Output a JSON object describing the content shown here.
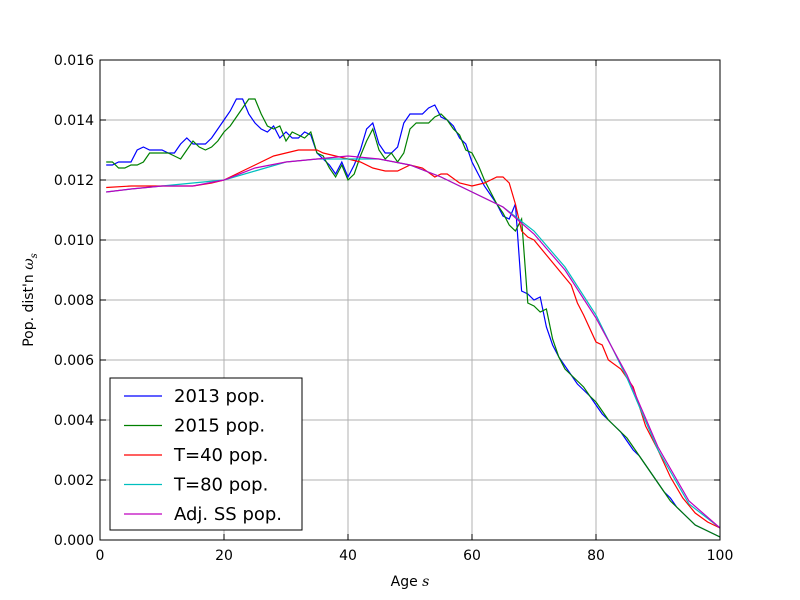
{
  "chart_data": {
    "type": "line",
    "title": "",
    "xlabel": "Age",
    "xlabel_symbol": "s",
    "ylabel": "Pop. dist'n",
    "ylabel_symbol": "ω",
    "ylabel_subscript": "s",
    "xlim": [
      0,
      100
    ],
    "ylim": [
      0,
      0.016
    ],
    "xticks": [
      0,
      20,
      40,
      60,
      80,
      100
    ],
    "yticks": [
      0.0,
      0.002,
      0.004,
      0.006,
      0.008,
      0.01,
      0.012,
      0.014,
      0.016
    ],
    "ytick_labels": [
      "0.000",
      "0.002",
      "0.004",
      "0.006",
      "0.008",
      "0.010",
      "0.012",
      "0.014",
      "0.016"
    ],
    "grid": true,
    "legend_position": "lower-left",
    "series": [
      {
        "name": "2013 pop.",
        "color": "#0000ff",
        "x": [
          1,
          2,
          3,
          4,
          5,
          6,
          7,
          8,
          9,
          10,
          11,
          12,
          13,
          14,
          15,
          16,
          17,
          18,
          19,
          20,
          21,
          22,
          23,
          24,
          25,
          26,
          27,
          28,
          29,
          30,
          31,
          32,
          33,
          34,
          35,
          36,
          37,
          38,
          39,
          40,
          41,
          42,
          43,
          44,
          45,
          46,
          47,
          48,
          49,
          50,
          51,
          52,
          53,
          54,
          55,
          56,
          57,
          58,
          59,
          60,
          61,
          62,
          63,
          64,
          65,
          66,
          67,
          68,
          69,
          70,
          71,
          72,
          73,
          74,
          75,
          76,
          77,
          78,
          79,
          80,
          81,
          82,
          83,
          84,
          85,
          86,
          87,
          88,
          89,
          90,
          91,
          92,
          93,
          94,
          95,
          96,
          97,
          98,
          99,
          100
        ],
        "y": [
          0.0125,
          0.0125,
          0.0126,
          0.0126,
          0.0126,
          0.013,
          0.0131,
          0.013,
          0.013,
          0.013,
          0.0129,
          0.0129,
          0.0132,
          0.0134,
          0.0132,
          0.0132,
          0.0132,
          0.0134,
          0.0137,
          0.014,
          0.0143,
          0.0147,
          0.0147,
          0.0142,
          0.0139,
          0.0137,
          0.0136,
          0.0138,
          0.0134,
          0.0136,
          0.0134,
          0.0134,
          0.0136,
          0.0135,
          0.0129,
          0.0127,
          0.0125,
          0.0122,
          0.0126,
          0.0121,
          0.0125,
          0.013,
          0.0137,
          0.0139,
          0.0132,
          0.0129,
          0.0129,
          0.0131,
          0.0139,
          0.0142,
          0.0142,
          0.0142,
          0.0144,
          0.0145,
          0.0141,
          0.014,
          0.0138,
          0.0134,
          0.0132,
          0.0126,
          0.0122,
          0.0118,
          0.0115,
          0.0112,
          0.0108,
          0.0107,
          0.0112,
          0.0083,
          0.0082,
          0.008,
          0.0081,
          0.0071,
          0.0065,
          0.0061,
          0.0058,
          0.0055,
          0.0052,
          0.005,
          0.0048,
          0.0045,
          0.0042,
          0.004,
          0.0038,
          0.0036,
          0.0033,
          0.003,
          0.0028,
          0.0025,
          0.0022,
          0.0019,
          0.0016,
          0.0014,
          0.0011,
          0.0009,
          0.0007,
          0.0005,
          0.0004,
          0.0003,
          0.0002,
          0.0001
        ]
      },
      {
        "name": "2015 pop.",
        "color": "#008000",
        "x": [
          1,
          2,
          3,
          4,
          5,
          6,
          7,
          8,
          9,
          10,
          11,
          12,
          13,
          14,
          15,
          16,
          17,
          18,
          19,
          20,
          21,
          22,
          23,
          24,
          25,
          26,
          27,
          28,
          29,
          30,
          31,
          32,
          33,
          34,
          35,
          36,
          37,
          38,
          39,
          40,
          41,
          42,
          43,
          44,
          45,
          46,
          47,
          48,
          49,
          50,
          51,
          52,
          53,
          54,
          55,
          56,
          57,
          58,
          59,
          60,
          61,
          62,
          63,
          64,
          65,
          66,
          67,
          68,
          69,
          70,
          71,
          72,
          73,
          74,
          75,
          76,
          77,
          78,
          79,
          80,
          81,
          82,
          83,
          84,
          85,
          86,
          87,
          88,
          89,
          90,
          91,
          92,
          93,
          94,
          95,
          96,
          97,
          98,
          99,
          100
        ],
        "y": [
          0.0126,
          0.0126,
          0.0124,
          0.0124,
          0.0125,
          0.0125,
          0.0126,
          0.0129,
          0.0129,
          0.0129,
          0.0129,
          0.0128,
          0.0127,
          0.013,
          0.0133,
          0.0131,
          0.013,
          0.0131,
          0.0133,
          0.0136,
          0.0138,
          0.0141,
          0.0144,
          0.0147,
          0.0147,
          0.0142,
          0.0138,
          0.0137,
          0.0138,
          0.0133,
          0.0136,
          0.0135,
          0.0134,
          0.0136,
          0.0129,
          0.0128,
          0.0124,
          0.0121,
          0.0125,
          0.012,
          0.0122,
          0.0128,
          0.0133,
          0.0137,
          0.013,
          0.0127,
          0.0129,
          0.0126,
          0.0129,
          0.0137,
          0.0139,
          0.0139,
          0.0139,
          0.0141,
          0.0142,
          0.014,
          0.0137,
          0.0135,
          0.013,
          0.0129,
          0.0125,
          0.012,
          0.0116,
          0.0112,
          0.0109,
          0.0105,
          0.0103,
          0.0107,
          0.0079,
          0.0078,
          0.0076,
          0.0077,
          0.0067,
          0.0061,
          0.0057,
          0.0055,
          0.0053,
          0.0051,
          0.0048,
          0.0046,
          0.0043,
          0.004,
          0.0038,
          0.0036,
          0.0034,
          0.0031,
          0.0028,
          0.0025,
          0.0022,
          0.0019,
          0.0016,
          0.0013,
          0.0011,
          0.0009,
          0.0007,
          0.0005,
          0.0004,
          0.0003,
          0.0002,
          0.0001
        ]
      },
      {
        "name": "T=40 pop.",
        "color": "#ff0000",
        "x": [
          1,
          5,
          10,
          15,
          18,
          20,
          22,
          25,
          28,
          30,
          32,
          35,
          36,
          38,
          40,
          42,
          44,
          46,
          48,
          50,
          52,
          54,
          55,
          56,
          58,
          60,
          62,
          64,
          65,
          66,
          67,
          68,
          69,
          70,
          72,
          74,
          76,
          77,
          78,
          80,
          81,
          82,
          84,
          86,
          88,
          90,
          92,
          94,
          96,
          98,
          100
        ],
        "y": [
          0.01175,
          0.0118,
          0.0118,
          0.0118,
          0.0119,
          0.012,
          0.0122,
          0.0125,
          0.0128,
          0.0129,
          0.013,
          0.013,
          0.0129,
          0.0128,
          0.0127,
          0.0126,
          0.0124,
          0.0123,
          0.0123,
          0.0125,
          0.0124,
          0.0121,
          0.0122,
          0.0122,
          0.0119,
          0.0118,
          0.0119,
          0.0121,
          0.0121,
          0.0119,
          0.0112,
          0.0103,
          0.0101,
          0.01,
          0.0095,
          0.009,
          0.0085,
          0.0079,
          0.0075,
          0.0066,
          0.0065,
          0.006,
          0.0057,
          0.0051,
          0.0038,
          0.003,
          0.0021,
          0.0014,
          0.0009,
          0.0006,
          0.0004
        ]
      },
      {
        "name": "T=80 pop.",
        "color": "#00bfbf",
        "x": [
          1,
          5,
          10,
          15,
          20,
          25,
          30,
          35,
          40,
          45,
          50,
          55,
          60,
          65,
          70,
          75,
          80,
          85,
          90,
          95,
          100
        ],
        "y": [
          0.0116,
          0.0117,
          0.0118,
          0.0119,
          0.012,
          0.0123,
          0.0126,
          0.0127,
          0.0127,
          0.0127,
          0.0125,
          0.0121,
          0.0116,
          0.0111,
          0.0103,
          0.0091,
          0.0075,
          0.0054,
          0.003,
          0.0012,
          0.0004
        ]
      },
      {
        "name": "Adj. SS pop.",
        "color": "#bf00bf",
        "x": [
          1,
          5,
          10,
          15,
          20,
          25,
          30,
          35,
          40,
          45,
          50,
          55,
          60,
          65,
          70,
          75,
          80,
          85,
          90,
          95,
          100
        ],
        "y": [
          0.0116,
          0.0117,
          0.0118,
          0.0118,
          0.012,
          0.0124,
          0.0126,
          0.0127,
          0.0128,
          0.0127,
          0.0125,
          0.0121,
          0.0116,
          0.0111,
          0.0102,
          0.009,
          0.0074,
          0.0055,
          0.0031,
          0.0013,
          0.0004
        ]
      }
    ]
  }
}
